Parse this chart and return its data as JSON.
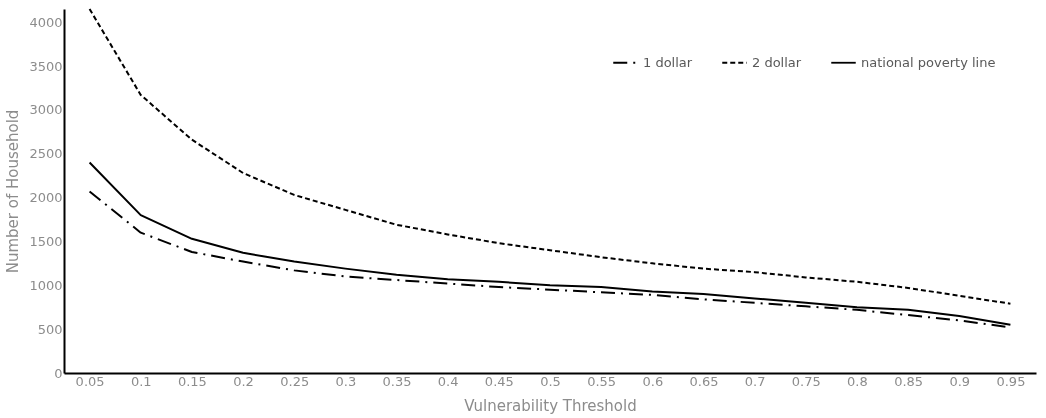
{
  "chart_data": {
    "type": "line",
    "xlabel": "Vulnerability Threshold",
    "ylabel": "Number of Household",
    "categories": [
      "0.05",
      "0.1",
      "0.15",
      "0.2",
      "0.25",
      "0.3",
      "0.35",
      "0.4",
      "0.45",
      "0.5",
      "0.55",
      "0.6",
      "0.65",
      "0.7",
      "0.75",
      "0.8",
      "0.85",
      "0.9",
      "0.95"
    ],
    "series": [
      {
        "name": "1 dollar",
        "color": "#000000",
        "line_style": "dashed",
        "values": [
          2070,
          1600,
          1380,
          1270,
          1170,
          1100,
          1060,
          1020,
          980,
          950,
          920,
          890,
          840,
          800,
          760,
          720,
          660,
          600,
          520
        ]
      },
      {
        "name": "2 dollar",
        "color": "#000000",
        "line_style": "dotted",
        "values": [
          4150,
          3170,
          2660,
          2280,
          2030,
          1860,
          1690,
          1580,
          1480,
          1400,
          1320,
          1250,
          1190,
          1150,
          1090,
          1040,
          970,
          880,
          790
        ]
      },
      {
        "name": "national poverty line",
        "color": "#000000",
        "line_style": "solid",
        "values": [
          2400,
          1800,
          1530,
          1370,
          1270,
          1190,
          1120,
          1070,
          1040,
          1000,
          980,
          930,
          900,
          850,
          800,
          750,
          720,
          650,
          550
        ]
      }
    ],
    "ylim": [
      0,
      4150
    ],
    "yticks": [
      0,
      500,
      1000,
      1500,
      2000,
      2500,
      3000,
      3500,
      4000
    ],
    "grid": false,
    "legend": "top right"
  }
}
